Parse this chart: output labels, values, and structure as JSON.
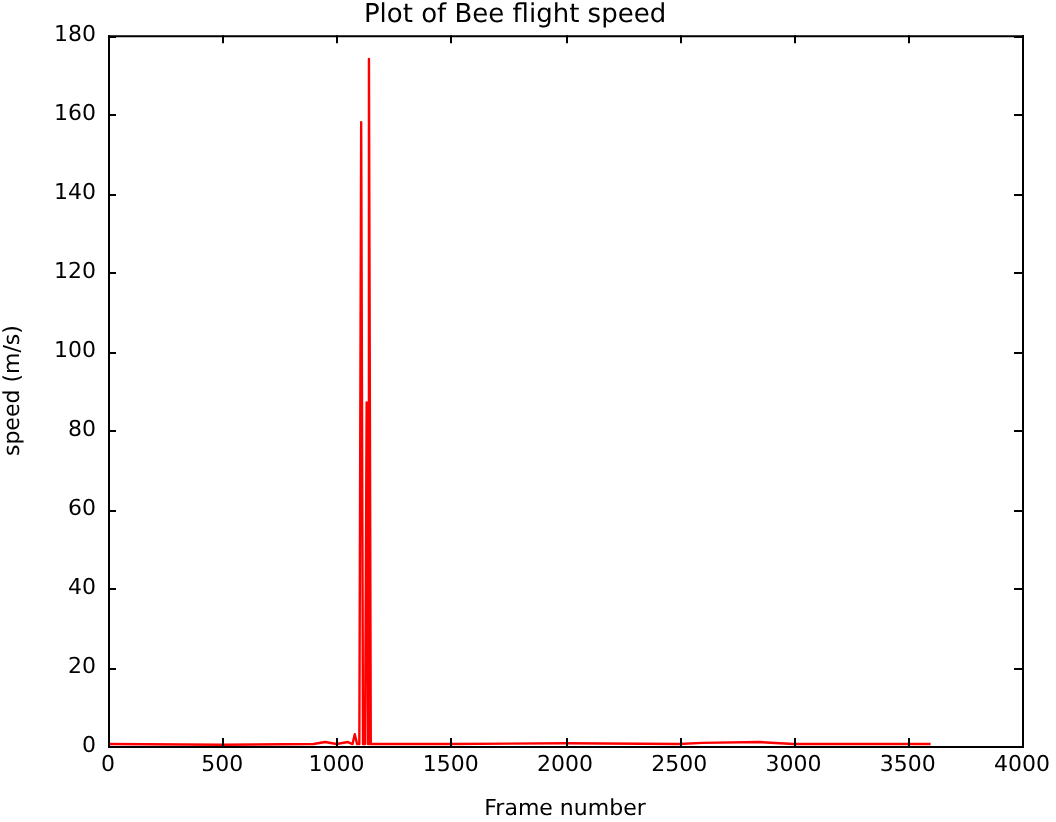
{
  "chart_data": {
    "type": "line",
    "title": "Plot of Bee flight speed",
    "xlabel": "Frame number",
    "ylabel": "speed (m/s)",
    "series": [
      {
        "color": "#ff0000",
        "x": [
          0,
          500,
          900,
          950,
          1000,
          1050,
          1070,
          1080,
          1090,
          1100,
          1108,
          1116,
          1125,
          1132,
          1138,
          1142,
          1150,
          1200,
          1500,
          2000,
          2500,
          2600,
          2850,
          3000,
          3600
        ],
        "values": [
          0.5,
          0.3,
          0.5,
          1,
          0.5,
          1,
          0.5,
          3,
          0.5,
          0.5,
          158,
          0.5,
          0.5,
          87,
          0.5,
          174,
          0.5,
          0.5,
          0.5,
          0.7,
          0.5,
          0.8,
          1,
          0.5,
          0.5
        ]
      }
    ],
    "xlim": [
      0,
      4000
    ],
    "xticks": [
      0,
      500,
      1000,
      1500,
      2000,
      2500,
      3000,
      3500,
      4000
    ],
    "ylim": [
      0,
      180
    ],
    "yticks": [
      0,
      20,
      40,
      60,
      80,
      100,
      120,
      140,
      160,
      180
    ],
    "grid": false,
    "legend": false,
    "marker": "none",
    "line_style": "solid"
  }
}
